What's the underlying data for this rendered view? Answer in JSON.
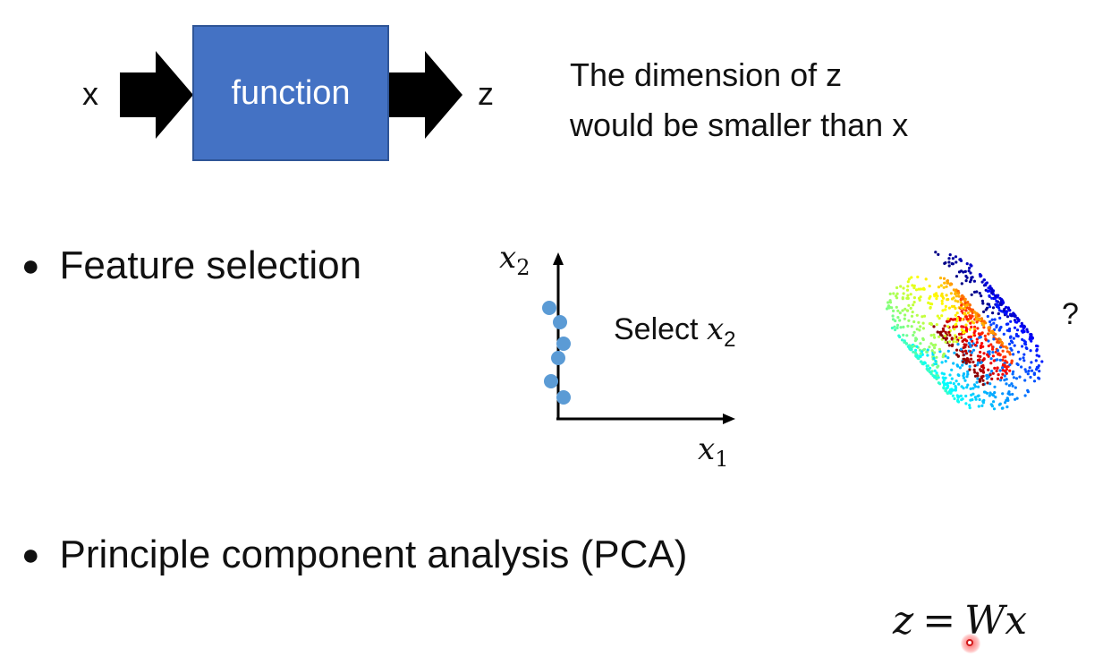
{
  "diagram": {
    "input_label": "x",
    "box_label": "function",
    "output_label": "z",
    "box_color": "#4472c4",
    "note_line1": "The dimension of z",
    "note_line2": "would be smaller than x"
  },
  "bullets": [
    {
      "text": "Feature selection"
    },
    {
      "text": "Principle component analysis (PCA)"
    }
  ],
  "feature_plot": {
    "y_axis_label": "x",
    "y_axis_sub": "2",
    "x_axis_label": "x",
    "x_axis_sub": "1",
    "select_word": "Select",
    "select_var": "x",
    "select_sub": "2",
    "point_color": "#5b9bd5"
  },
  "swiss_roll": {
    "question": "?"
  },
  "formula": {
    "lhs": "z",
    "equals": "=",
    "rhs": "Wx"
  }
}
